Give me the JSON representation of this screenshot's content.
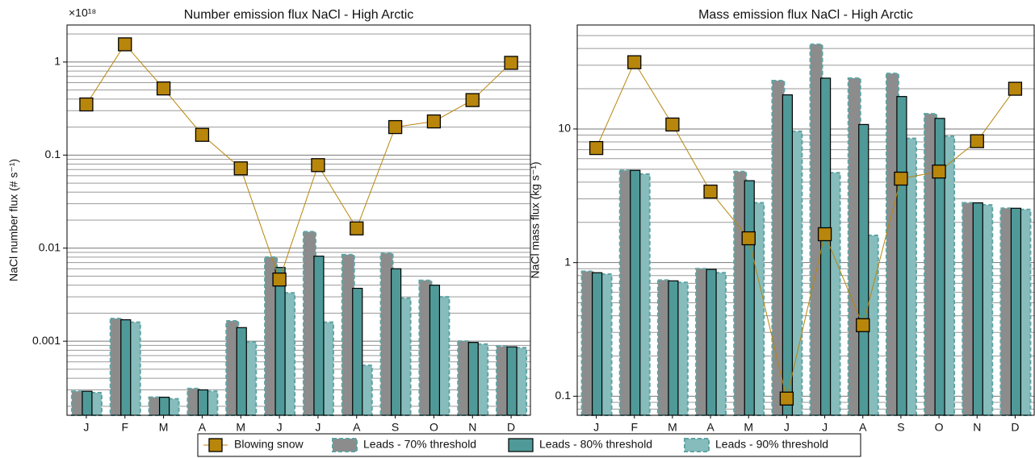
{
  "chart_data": [
    {
      "type": "bar",
      "title": "Number emission flux NaCl - High Arctic",
      "y_multiplier": "×10¹⁸",
      "ylabel": "NaCl number flux (# s⁻¹)",
      "categories": [
        "J",
        "F",
        "M",
        "A",
        "M",
        "J",
        "J",
        "A",
        "S",
        "O",
        "N",
        "D"
      ],
      "ylog": true,
      "ylim": [
        0.00016,
        2.5
      ],
      "yticks": [
        0.001,
        0.01,
        0.1,
        1
      ],
      "grid": true,
      "minor_grid": true,
      "series": [
        {
          "name": "Blowing snow",
          "type": "line",
          "color": "#b8860b",
          "values": [
            0.35,
            1.55,
            0.52,
            0.165,
            0.072,
            0.0046,
            0.078,
            0.0163,
            0.2,
            0.23,
            0.39,
            0.98
          ]
        },
        {
          "name": "Leads - 70% threshold",
          "type": "bar",
          "color": "#8c8c8c",
          "values": [
            0.00029,
            0.00175,
            0.00025,
            0.00031,
            0.00165,
            0.008,
            0.015,
            0.0085,
            0.0088,
            0.0045,
            0.001,
            0.00088
          ]
        },
        {
          "name": "Leads - 80% threshold",
          "type": "bar",
          "color": "#4f9a98",
          "values": [
            0.00029,
            0.0017,
            0.00025,
            0.0003,
            0.0014,
            0.0062,
            0.0082,
            0.0037,
            0.006,
            0.004,
            0.00097,
            0.00087
          ]
        },
        {
          "name": "Leads - 90% threshold",
          "type": "bar",
          "color": "#86bcbc",
          "values": [
            0.00028,
            0.0016,
            0.00024,
            0.00029,
            0.00098,
            0.0033,
            0.0016,
            0.00055,
            0.0029,
            0.003,
            0.00093,
            0.00085
          ]
        }
      ]
    },
    {
      "type": "bar",
      "title": "Mass emission flux NaCl - High Arctic",
      "ylabel": "NaCl mass flux (kg s⁻¹)",
      "categories": [
        "J",
        "F",
        "M",
        "A",
        "M",
        "J",
        "J",
        "A",
        "S",
        "O",
        "N",
        "D"
      ],
      "ylog": true,
      "ylim": [
        0.072,
        60
      ],
      "yticks": [
        0.1,
        1,
        10
      ],
      "grid": true,
      "minor_grid": true,
      "series": [
        {
          "type": "line",
          "color": "#b8860b",
          "values": [
            7.2,
            31.6,
            10.8,
            3.4,
            1.52,
            0.096,
            1.63,
            0.34,
            4.25,
            4.8,
            8.1,
            20
          ]
        },
        {
          "type": "bar",
          "color": "#8c8c8c",
          "values": [
            0.86,
            4.9,
            0.74,
            0.9,
            4.8,
            23,
            43,
            24,
            26,
            13,
            2.8,
            2.55
          ]
        },
        {
          "type": "bar",
          "color": "#4f9a98",
          "values": [
            0.84,
            4.9,
            0.73,
            0.89,
            4.1,
            18,
            24,
            10.8,
            17.5,
            12,
            2.8,
            2.55
          ]
        },
        {
          "type": "bar",
          "color": "#86bcbc",
          "values": [
            0.82,
            4.6,
            0.71,
            0.84,
            2.8,
            9.6,
            4.7,
            1.6,
            8.5,
            8.8,
            2.7,
            2.5
          ]
        }
      ]
    }
  ]
}
